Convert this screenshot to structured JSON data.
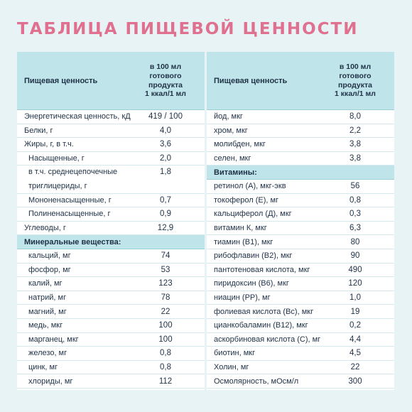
{
  "title": "ТАБЛИЦА ПИЩЕВОЙ ЦЕННОСТИ",
  "colors": {
    "title": "#e0708f",
    "header_bg": "#bfe4ea",
    "page_bg": "#e7f3f5"
  },
  "header": {
    "name": "Пищевая ценность",
    "value": "в 100 мл\nготового\nпродукта\n1 ккал/1 мл"
  },
  "left_rows": [
    {
      "type": "item",
      "name": "Энергетическая ценность, кДж / ккал",
      "value": "419 / 100"
    },
    {
      "type": "item",
      "name": "Белки, г",
      "value": "4,0"
    },
    {
      "type": "item",
      "name": "Жиры, г, в т.ч.",
      "value": "3,6"
    },
    {
      "type": "indent",
      "name": "Насыщенные, г",
      "value": "2,0"
    },
    {
      "type": "indent-tall",
      "name": "в т.ч. среднецепочечные триглицериды, г",
      "value": "1,8"
    },
    {
      "type": "indent",
      "name": "Мононенасыщенные, г",
      "value": "0,7"
    },
    {
      "type": "indent",
      "name": "Полиненасыщенные, г",
      "value": "0,9"
    },
    {
      "type": "item",
      "name": "Углеводы, г",
      "value": "12,9"
    },
    {
      "type": "section",
      "name": "Минеральные вещества:",
      "value": ""
    },
    {
      "type": "indent",
      "name": "кальций, мг",
      "value": "74"
    },
    {
      "type": "indent",
      "name": "фосфор, мг",
      "value": "53"
    },
    {
      "type": "indent",
      "name": "калий, мг",
      "value": "123"
    },
    {
      "type": "indent",
      "name": "натрий, мг",
      "value": "78"
    },
    {
      "type": "indent",
      "name": "магний, мг",
      "value": "22"
    },
    {
      "type": "indent",
      "name": "медь, мкг",
      "value": "100"
    },
    {
      "type": "indent",
      "name": "марганец, мкг",
      "value": "100"
    },
    {
      "type": "indent",
      "name": "железо, мг",
      "value": "0,8"
    },
    {
      "type": "indent",
      "name": "цинк, мг",
      "value": "0,8"
    },
    {
      "type": "indent",
      "name": "хлориды, мг",
      "value": "112"
    }
  ],
  "right_rows": [
    {
      "type": "item",
      "name": "йод, мкг",
      "value": "8,0"
    },
    {
      "type": "item",
      "name": "хром, мкг",
      "value": "2,2"
    },
    {
      "type": "item",
      "name": "молибден, мкг",
      "value": "3,8"
    },
    {
      "type": "item",
      "name": "селен, мкг",
      "value": "3,8"
    },
    {
      "type": "section",
      "name": "Витамины:",
      "value": ""
    },
    {
      "type": "item",
      "name": "ретинол (А), мкг-экв",
      "value": "56"
    },
    {
      "type": "item",
      "name": "токоферол (Е), мг",
      "value": "0,8"
    },
    {
      "type": "item",
      "name": "кальциферол (Д), мкг",
      "value": "0,3"
    },
    {
      "type": "item",
      "name": "витамин К, мкг",
      "value": "6,3"
    },
    {
      "type": "item",
      "name": "тиамин (В1), мкг",
      "value": "80"
    },
    {
      "type": "item",
      "name": "рибофлавин (В2), мкг",
      "value": "90"
    },
    {
      "type": "item",
      "name": "пантотеновая кислота, мкг",
      "value": "490"
    },
    {
      "type": "item",
      "name": "пиридоксин (В6), мкг",
      "value": "120"
    },
    {
      "type": "item",
      "name": "ниацин (РР), мг",
      "value": "1,0"
    },
    {
      "type": "item",
      "name": "фолиевая кислота (Вс), мкг",
      "value": "19"
    },
    {
      "type": "item",
      "name": "цианкобаламин (В12), мкг",
      "value": "0,2"
    },
    {
      "type": "item",
      "name": "аскорбиновая кислота (С), мг",
      "value": "4,4"
    },
    {
      "type": "item",
      "name": "биотин, мкг",
      "value": "4,5"
    },
    {
      "type": "item",
      "name": "Холин, мг",
      "value": "22"
    },
    {
      "type": "item",
      "name": "Осмолярность, мОсм/л",
      "value": "300"
    }
  ]
}
